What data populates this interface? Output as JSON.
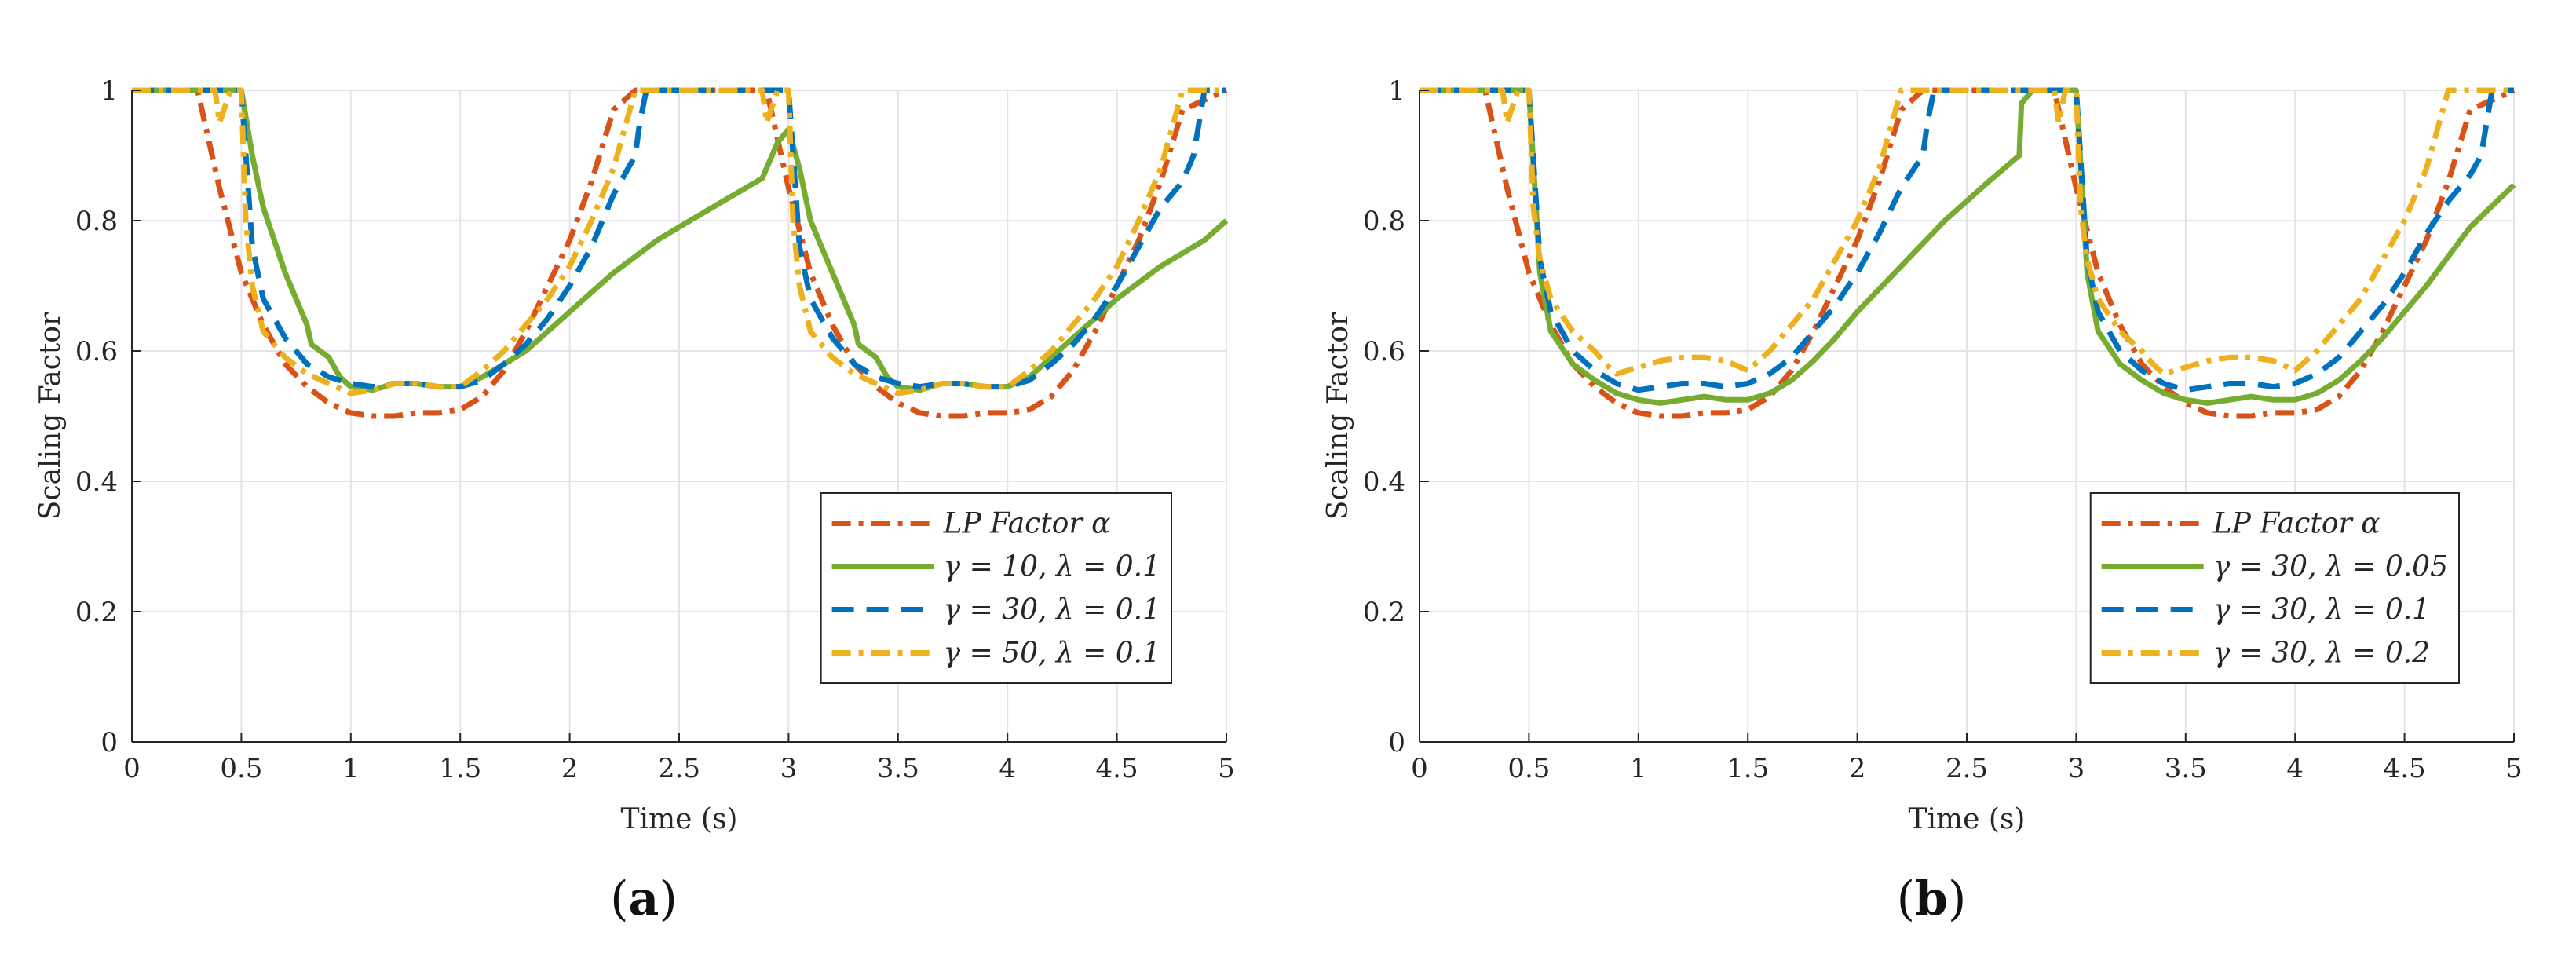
{
  "figure": {
    "panels": [
      {
        "label_open": "(",
        "label_letter": "a",
        "label_close": ")"
      },
      {
        "label_open": "(",
        "label_letter": "b",
        "label_close": ")"
      }
    ]
  },
  "chart_data": [
    {
      "type": "line",
      "panel": "a",
      "title": "",
      "xlabel": "Time (s)",
      "ylabel": "Scaling Factor",
      "xlim": [
        0,
        5
      ],
      "ylim": [
        0,
        1
      ],
      "grid": true,
      "xticks": [
        0,
        0.5,
        1,
        1.5,
        2,
        2.5,
        3,
        3.5,
        4,
        4.5,
        5
      ],
      "xtick_labels": [
        "0",
        "0.5",
        "1",
        "1.5",
        "2",
        "2.5",
        "3",
        "3.5",
        "4",
        "4.5",
        "5"
      ],
      "yticks": [
        0,
        0.2,
        0.4,
        0.6,
        0.8,
        1
      ],
      "ytick_labels": [
        "0",
        "0.2",
        "0.4",
        "0.6",
        "0.8",
        "1"
      ],
      "legend_position": "bottom-right",
      "series": [
        {
          "name": "LP Factor α",
          "color": "#D95319",
          "style": "dashdot",
          "x": [
            0,
            0.3,
            0.4,
            0.5,
            0.6,
            0.7,
            0.8,
            0.9,
            1.0,
            1.1,
            1.2,
            1.3,
            1.4,
            1.5,
            1.6,
            1.7,
            1.8,
            1.9,
            2.0,
            2.1,
            2.2,
            2.3,
            2.8,
            2.9,
            3.0,
            3.1,
            3.2,
            3.3,
            3.4,
            3.5,
            3.6,
            3.7,
            3.8,
            3.9,
            4.0,
            4.1,
            4.2,
            4.3,
            4.4,
            4.5,
            4.6,
            4.7,
            4.8,
            5.0
          ],
          "y": [
            1,
            1,
            0.85,
            0.72,
            0.64,
            0.58,
            0.545,
            0.52,
            0.505,
            0.5,
            0.5,
            0.505,
            0.505,
            0.51,
            0.53,
            0.57,
            0.63,
            0.7,
            0.77,
            0.86,
            0.97,
            1,
            1,
            1,
            0.85,
            0.72,
            0.64,
            0.58,
            0.545,
            0.52,
            0.505,
            0.5,
            0.5,
            0.505,
            0.505,
            0.51,
            0.53,
            0.57,
            0.63,
            0.7,
            0.77,
            0.86,
            0.97,
            1
          ]
        },
        {
          "name": "γ = 10, λ = 0.1",
          "color": "#77AC30",
          "style": "solid",
          "x": [
            0,
            0.5,
            0.55,
            0.6,
            0.7,
            0.8,
            0.82,
            0.9,
            0.95,
            1.0,
            1.1,
            1.2,
            1.3,
            1.4,
            1.5,
            1.6,
            1.8,
            2.0,
            2.2,
            2.4,
            2.6,
            2.88,
            2.95,
            3.0,
            3.05,
            3.1,
            3.2,
            3.3,
            3.32,
            3.4,
            3.45,
            3.5,
            3.6,
            3.7,
            3.8,
            3.9,
            4.0,
            4.1,
            4.3,
            4.5,
            4.7,
            4.9,
            5.0
          ],
          "y": [
            1,
            1,
            0.9,
            0.82,
            0.72,
            0.64,
            0.61,
            0.59,
            0.56,
            0.545,
            0.54,
            0.55,
            0.55,
            0.545,
            0.545,
            0.56,
            0.6,
            0.66,
            0.72,
            0.77,
            0.81,
            0.865,
            0.92,
            0.94,
            0.88,
            0.8,
            0.72,
            0.64,
            0.61,
            0.59,
            0.56,
            0.545,
            0.54,
            0.55,
            0.55,
            0.545,
            0.545,
            0.56,
            0.62,
            0.68,
            0.73,
            0.77,
            0.8
          ]
        },
        {
          "name": "γ = 30, λ = 0.1",
          "color": "#0072BD",
          "style": "dashed",
          "x": [
            0,
            0.5,
            0.55,
            0.6,
            0.7,
            0.8,
            0.9,
            1.0,
            1.1,
            1.2,
            1.3,
            1.4,
            1.5,
            1.6,
            1.7,
            1.8,
            1.9,
            2.0,
            2.1,
            2.2,
            2.3,
            2.32,
            2.35,
            2.4,
            2.95,
            3.0,
            3.05,
            3.1,
            3.2,
            3.3,
            3.4,
            3.5,
            3.6,
            3.7,
            3.8,
            3.9,
            4.0,
            4.1,
            4.2,
            4.3,
            4.4,
            4.5,
            4.6,
            4.7,
            4.8,
            4.85,
            4.9,
            5.0
          ],
          "y": [
            1,
            1,
            0.76,
            0.68,
            0.62,
            0.58,
            0.56,
            0.55,
            0.545,
            0.55,
            0.55,
            0.545,
            0.545,
            0.555,
            0.58,
            0.61,
            0.65,
            0.7,
            0.76,
            0.84,
            0.9,
            0.95,
            1,
            1,
            1,
            1,
            0.76,
            0.68,
            0.62,
            0.58,
            0.56,
            0.55,
            0.545,
            0.55,
            0.55,
            0.545,
            0.545,
            0.555,
            0.58,
            0.61,
            0.65,
            0.7,
            0.76,
            0.82,
            0.86,
            0.9,
            1,
            1
          ]
        },
        {
          "name": "γ = 50, λ = 0.1",
          "color": "#EDB120",
          "style": "dashdot",
          "x": [
            0,
            0.38,
            0.4,
            0.45,
            0.5,
            0.52,
            0.55,
            0.6,
            0.7,
            0.8,
            0.9,
            1.0,
            1.1,
            1.2,
            1.3,
            1.4,
            1.5,
            1.6,
            1.7,
            1.8,
            1.9,
            2.0,
            2.1,
            2.2,
            2.3,
            2.88,
            2.9,
            2.95,
            3.0,
            3.02,
            3.05,
            3.1,
            3.2,
            3.3,
            3.4,
            3.5,
            3.6,
            3.7,
            3.8,
            3.9,
            4.0,
            4.1,
            4.2,
            4.3,
            4.4,
            4.5,
            4.6,
            4.7,
            4.8,
            5.0
          ],
          "y": [
            1,
            1,
            0.95,
            1,
            1,
            0.8,
            0.7,
            0.63,
            0.59,
            0.565,
            0.55,
            0.535,
            0.54,
            0.55,
            0.55,
            0.545,
            0.545,
            0.57,
            0.6,
            0.64,
            0.68,
            0.73,
            0.8,
            0.88,
            1,
            1,
            0.95,
            1,
            1,
            0.8,
            0.7,
            0.63,
            0.59,
            0.565,
            0.55,
            0.535,
            0.54,
            0.55,
            0.55,
            0.545,
            0.545,
            0.57,
            0.6,
            0.64,
            0.68,
            0.73,
            0.8,
            0.88,
            1,
            1
          ]
        }
      ]
    },
    {
      "type": "line",
      "panel": "b",
      "title": "",
      "xlabel": "Time (s)",
      "ylabel": "Scaling Factor",
      "xlim": [
        0,
        5
      ],
      "ylim": [
        0,
        1
      ],
      "grid": true,
      "xticks": [
        0,
        0.5,
        1,
        1.5,
        2,
        2.5,
        3,
        3.5,
        4,
        4.5,
        5
      ],
      "xtick_labels": [
        "0",
        "0.5",
        "1",
        "1.5",
        "2",
        "2.5",
        "3",
        "3.5",
        "4",
        "4.5",
        "5"
      ],
      "yticks": [
        0,
        0.2,
        0.4,
        0.6,
        0.8,
        1
      ],
      "ytick_labels": [
        "0",
        "0.2",
        "0.4",
        "0.6",
        "0.8",
        "1"
      ],
      "legend_position": "bottom-right",
      "series": [
        {
          "name": "LP Factor α",
          "color": "#D95319",
          "style": "dashdot",
          "x": [
            0,
            0.3,
            0.4,
            0.5,
            0.6,
            0.7,
            0.8,
            0.9,
            1.0,
            1.1,
            1.2,
            1.3,
            1.4,
            1.5,
            1.6,
            1.7,
            1.8,
            1.9,
            2.0,
            2.1,
            2.2,
            2.3,
            2.8,
            2.9,
            3.0,
            3.1,
            3.2,
            3.3,
            3.4,
            3.5,
            3.6,
            3.7,
            3.8,
            3.9,
            4.0,
            4.1,
            4.2,
            4.3,
            4.4,
            4.5,
            4.6,
            4.7,
            4.8,
            5.0
          ],
          "y": [
            1,
            1,
            0.85,
            0.72,
            0.64,
            0.58,
            0.545,
            0.52,
            0.505,
            0.5,
            0.5,
            0.505,
            0.505,
            0.51,
            0.53,
            0.57,
            0.63,
            0.7,
            0.77,
            0.86,
            0.97,
            1,
            1,
            1,
            0.85,
            0.72,
            0.64,
            0.58,
            0.545,
            0.52,
            0.505,
            0.5,
            0.5,
            0.505,
            0.505,
            0.51,
            0.53,
            0.57,
            0.63,
            0.7,
            0.77,
            0.86,
            0.97,
            1
          ]
        },
        {
          "name": "γ = 30, λ = 0.05",
          "color": "#77AC30",
          "style": "solid",
          "x": [
            0,
            0.5,
            0.55,
            0.6,
            0.7,
            0.8,
            0.9,
            1.0,
            1.1,
            1.2,
            1.3,
            1.4,
            1.5,
            1.6,
            1.7,
            1.8,
            1.9,
            2.0,
            2.2,
            2.4,
            2.6,
            2.74,
            2.75,
            2.8,
            3.0,
            3.05,
            3.1,
            3.2,
            3.3,
            3.4,
            3.5,
            3.6,
            3.7,
            3.8,
            3.9,
            4.0,
            4.1,
            4.2,
            4.3,
            4.4,
            4.6,
            4.8,
            5.0
          ],
          "y": [
            1,
            1,
            0.72,
            0.63,
            0.58,
            0.555,
            0.535,
            0.525,
            0.52,
            0.525,
            0.53,
            0.525,
            0.525,
            0.535,
            0.555,
            0.585,
            0.62,
            0.66,
            0.73,
            0.8,
            0.86,
            0.9,
            0.98,
            1,
            1,
            0.72,
            0.63,
            0.58,
            0.555,
            0.535,
            0.525,
            0.52,
            0.525,
            0.53,
            0.525,
            0.525,
            0.535,
            0.555,
            0.585,
            0.62,
            0.7,
            0.79,
            0.855
          ]
        },
        {
          "name": "γ = 30, λ = 0.1",
          "color": "#0072BD",
          "style": "dashed",
          "x": [
            0,
            0.5,
            0.55,
            0.6,
            0.7,
            0.8,
            0.9,
            1.0,
            1.1,
            1.2,
            1.3,
            1.4,
            1.5,
            1.6,
            1.7,
            1.8,
            1.9,
            2.0,
            2.1,
            2.2,
            2.3,
            2.32,
            2.35,
            2.4,
            3.0,
            3.05,
            3.1,
            3.2,
            3.3,
            3.4,
            3.5,
            3.6,
            3.7,
            3.8,
            3.9,
            4.0,
            4.1,
            4.2,
            4.3,
            4.4,
            4.5,
            4.6,
            4.7,
            4.8,
            4.85,
            4.9,
            5.0
          ],
          "y": [
            1,
            1,
            0.74,
            0.66,
            0.6,
            0.57,
            0.55,
            0.54,
            0.545,
            0.55,
            0.55,
            0.545,
            0.55,
            0.565,
            0.59,
            0.63,
            0.67,
            0.72,
            0.78,
            0.85,
            0.9,
            0.95,
            1,
            1,
            1,
            0.74,
            0.66,
            0.6,
            0.57,
            0.55,
            0.54,
            0.545,
            0.55,
            0.55,
            0.545,
            0.55,
            0.565,
            0.59,
            0.63,
            0.67,
            0.72,
            0.78,
            0.83,
            0.87,
            0.9,
            1,
            1
          ]
        },
        {
          "name": "γ = 30, λ = 0.2",
          "color": "#EDB120",
          "style": "dashdot",
          "x": [
            0,
            0.38,
            0.4,
            0.45,
            0.5,
            0.52,
            0.55,
            0.6,
            0.7,
            0.8,
            0.85,
            0.9,
            1.0,
            1.1,
            1.2,
            1.3,
            1.4,
            1.5,
            1.6,
            1.7,
            1.8,
            1.9,
            2.0,
            2.1,
            2.2,
            2.9,
            2.92,
            2.95,
            3.0,
            3.02,
            3.05,
            3.1,
            3.2,
            3.3,
            3.35,
            3.4,
            3.5,
            3.6,
            3.7,
            3.8,
            3.9,
            4.0,
            4.1,
            4.2,
            4.3,
            4.4,
            4.5,
            4.6,
            4.7,
            5.0
          ],
          "y": [
            1,
            1,
            0.95,
            1,
            1,
            0.82,
            0.74,
            0.68,
            0.63,
            0.6,
            0.58,
            0.565,
            0.575,
            0.585,
            0.59,
            0.59,
            0.585,
            0.57,
            0.6,
            0.64,
            0.68,
            0.74,
            0.8,
            0.88,
            1,
            1,
            0.95,
            1,
            1,
            0.82,
            0.74,
            0.68,
            0.63,
            0.6,
            0.58,
            0.565,
            0.575,
            0.585,
            0.59,
            0.59,
            0.585,
            0.57,
            0.6,
            0.64,
            0.68,
            0.74,
            0.8,
            0.88,
            1,
            1
          ]
        }
      ]
    }
  ]
}
